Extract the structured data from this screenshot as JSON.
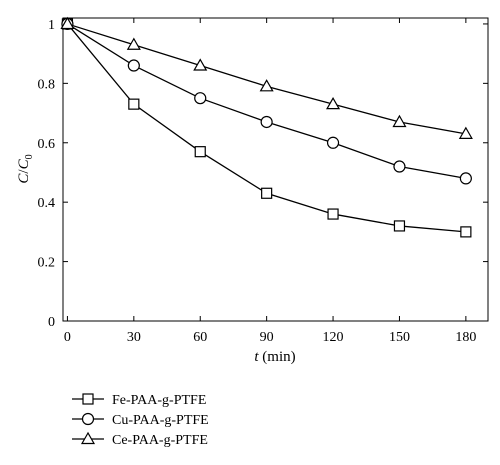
{
  "chart_data": {
    "type": "line",
    "title": "",
    "xlabel_italic": "t",
    "xlabel_rest": " (min)",
    "ylabel_italic_c": "C",
    "ylabel_slash": "/",
    "ylabel_c0": "C",
    "ylabel_sub": "0",
    "xlim": [
      -2,
      190
    ],
    "ylim": [
      0,
      1.02
    ],
    "xticks": [
      0,
      30,
      60,
      90,
      120,
      150,
      180
    ],
    "yticks": [
      0,
      0.2,
      0.4,
      0.6,
      0.8,
      1
    ],
    "ytick_labels": [
      "0",
      "0.2",
      "0.4",
      "0.6",
      "0.8",
      "1"
    ],
    "xtick_labels": [
      "0",
      "30",
      "60",
      "90",
      "120",
      "150",
      "180"
    ],
    "grid": false,
    "legend_position": "bottom-left",
    "x": [
      0,
      30,
      60,
      90,
      120,
      150,
      180
    ],
    "series": [
      {
        "name": "Fe-PAA-g-PTFE",
        "marker": "square",
        "values": [
          1.0,
          0.73,
          0.57,
          0.43,
          0.36,
          0.32,
          0.3
        ]
      },
      {
        "name": "Cu-PAA-g-PTFE",
        "marker": "circle",
        "values": [
          1.0,
          0.86,
          0.75,
          0.67,
          0.6,
          0.52,
          0.48
        ]
      },
      {
        "name": "Ce-PAA-g-PTFE",
        "marker": "triangle",
        "values": [
          1.0,
          0.93,
          0.86,
          0.79,
          0.73,
          0.67,
          0.63
        ]
      }
    ],
    "colors": {
      "line": "#000000",
      "marker_fill": "#ffffff"
    }
  }
}
